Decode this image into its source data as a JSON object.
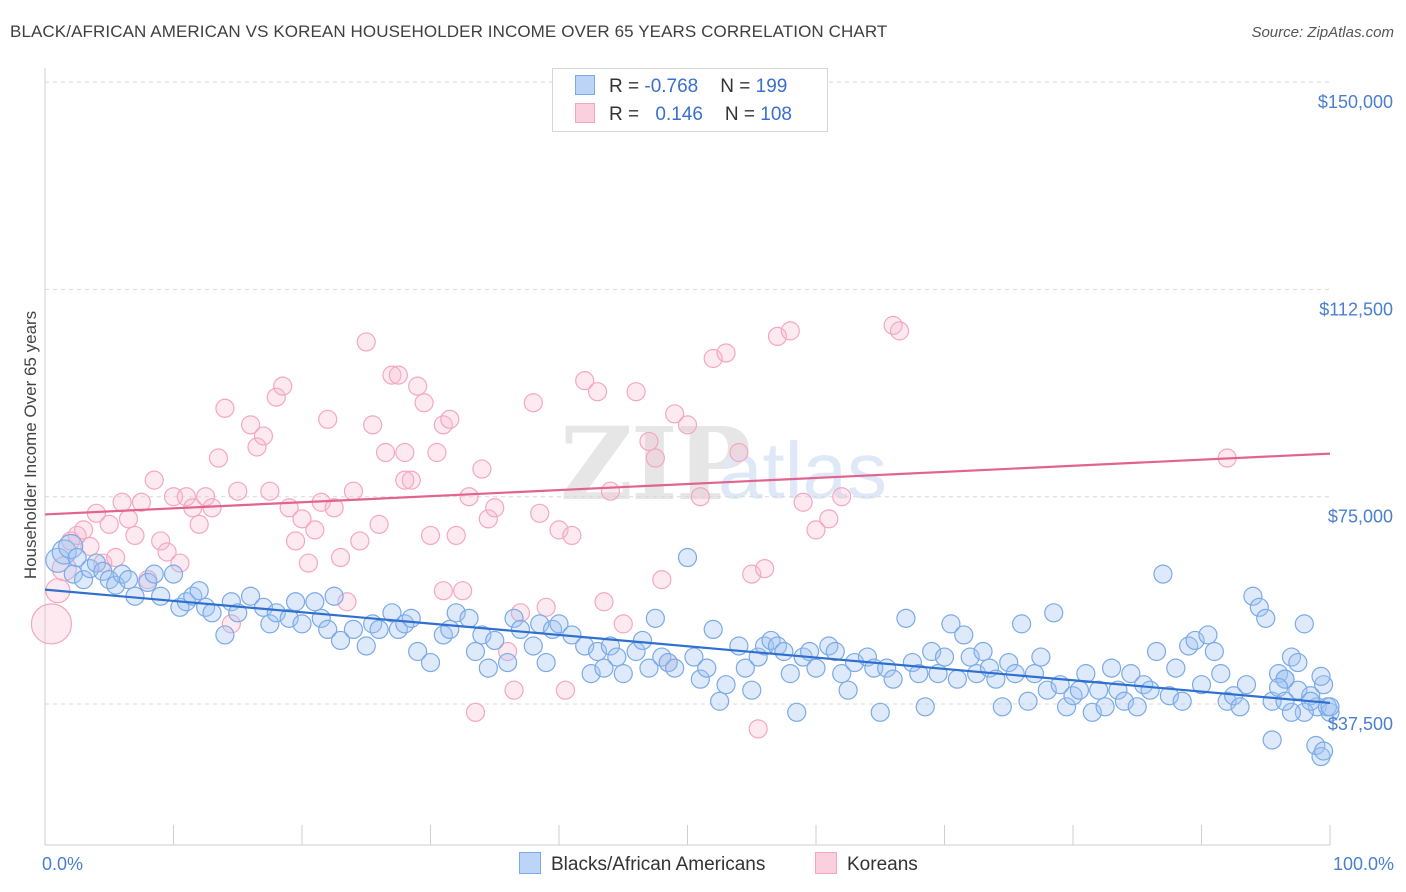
{
  "title": "BLACK/AFRICAN AMERICAN VS KOREAN HOUSEHOLDER INCOME OVER 65 YEARS CORRELATION CHART",
  "source": "Source: ZipAtlas.com",
  "watermark": {
    "zip": "ZIP",
    "atlas": "atlas"
  },
  "legend": {
    "rows": [
      {
        "r_label": "R = ",
        "r_value": "-0.768",
        "n_label": "N = ",
        "n_value": "199"
      },
      {
        "r_label": "R = ",
        "r_value": "0.146",
        "n_label": "N = ",
        "n_value": "108"
      }
    ]
  },
  "bottom_legend": [
    "Blacks/African Americans",
    "Koreans"
  ],
  "chart_data": {
    "type": "scatter",
    "title": "BLACK/AFRICAN AMERICAN VS KOREAN HOUSEHOLDER INCOME OVER 65 YEARS CORRELATION CHART",
    "xlabel": "",
    "ylabel": "Householder Income Over 65 years",
    "x_range": [
      0,
      100
    ],
    "y_range": [
      12000,
      154000
    ],
    "x_tick_labels": [
      "0.0%",
      "100.0%"
    ],
    "y_ticks": [
      {
        "value": 150000,
        "label": "$150,000"
      },
      {
        "value": 112500,
        "label": "$112,500"
      },
      {
        "value": 75000,
        "label": "$75,000"
      },
      {
        "value": 37500,
        "label": "$37,500"
      }
    ],
    "grid": "horizontal dashed",
    "legend_position": "top-center",
    "series": [
      {
        "name": "Blacks/African Americans",
        "color": "#7aaae8",
        "line_color": "#2f6fd0",
        "r": -0.768,
        "n": 199,
        "trend": [
          [
            0,
            58200
          ],
          [
            100,
            37700
          ]
        ],
        "points": [
          [
            1.0,
            63.5
          ],
          [
            1.5,
            65
          ],
          [
            2,
            66
          ],
          [
            2.2,
            61
          ],
          [
            2.5,
            64
          ],
          [
            3,
            60
          ],
          [
            3.5,
            62
          ],
          [
            4,
            63
          ],
          [
            4.5,
            61.5
          ],
          [
            5,
            60
          ],
          [
            5.5,
            59
          ],
          [
            6,
            61
          ],
          [
            6.5,
            60
          ],
          [
            7,
            57
          ],
          [
            8,
            59.5
          ],
          [
            8.5,
            61
          ],
          [
            9,
            57
          ],
          [
            10,
            61
          ],
          [
            10.5,
            55
          ],
          [
            11,
            56
          ],
          [
            11.5,
            57
          ],
          [
            12,
            58
          ],
          [
            12.5,
            55
          ],
          [
            13,
            54
          ],
          [
            14,
            50
          ],
          [
            14.5,
            56
          ],
          [
            15,
            54
          ],
          [
            16,
            57
          ],
          [
            17,
            55
          ],
          [
            17.5,
            52
          ],
          [
            18,
            54
          ],
          [
            19,
            53
          ],
          [
            19.5,
            56
          ],
          [
            20,
            52
          ],
          [
            21,
            56
          ],
          [
            21.5,
            53
          ],
          [
            22,
            51
          ],
          [
            22.5,
            57
          ],
          [
            23,
            49
          ],
          [
            24,
            51
          ],
          [
            25,
            48
          ],
          [
            25.5,
            52
          ],
          [
            26,
            51
          ],
          [
            27,
            54
          ],
          [
            27.5,
            51
          ],
          [
            28,
            52
          ],
          [
            28.5,
            53
          ],
          [
            29,
            47
          ],
          [
            30,
            45
          ],
          [
            31,
            50
          ],
          [
            31.5,
            51
          ],
          [
            32,
            54
          ],
          [
            33,
            53
          ],
          [
            33.5,
            47
          ],
          [
            34,
            50
          ],
          [
            34.5,
            44
          ],
          [
            35,
            49
          ],
          [
            36,
            45
          ],
          [
            36.5,
            53
          ],
          [
            37,
            51
          ],
          [
            38,
            48
          ],
          [
            38.5,
            52
          ],
          [
            39,
            45
          ],
          [
            39.5,
            51
          ],
          [
            40,
            52
          ],
          [
            41,
            50
          ],
          [
            42,
            48
          ],
          [
            42.5,
            43
          ],
          [
            43,
            47
          ],
          [
            43.5,
            44
          ],
          [
            44,
            48
          ],
          [
            44.5,
            46
          ],
          [
            45,
            43
          ],
          [
            46,
            47
          ],
          [
            46.5,
            49
          ],
          [
            47,
            44
          ],
          [
            47.5,
            53
          ],
          [
            48,
            46
          ],
          [
            48.5,
            45
          ],
          [
            49,
            44
          ],
          [
            50,
            64
          ],
          [
            50.5,
            46
          ],
          [
            51,
            42
          ],
          [
            51.5,
            44
          ],
          [
            52,
            51
          ],
          [
            52.5,
            38
          ],
          [
            53,
            41
          ],
          [
            54,
            48
          ],
          [
            54.5,
            44
          ],
          [
            55,
            40
          ],
          [
            55.5,
            46
          ],
          [
            56,
            48
          ],
          [
            56.5,
            49
          ],
          [
            57,
            48
          ],
          [
            57.5,
            47
          ],
          [
            58,
            43
          ],
          [
            58.5,
            36
          ],
          [
            59,
            46
          ],
          [
            59.5,
            47
          ],
          [
            60,
            44
          ],
          [
            61,
            48
          ],
          [
            61.5,
            47
          ],
          [
            62,
            43
          ],
          [
            62.5,
            40
          ],
          [
            63,
            45
          ],
          [
            64,
            46
          ],
          [
            64.5,
            44
          ],
          [
            65,
            36
          ],
          [
            65.5,
            44
          ],
          [
            66,
            42
          ],
          [
            67,
            53
          ],
          [
            67.5,
            45
          ],
          [
            68,
            43
          ],
          [
            68.5,
            37
          ],
          [
            69,
            47
          ],
          [
            69.5,
            43
          ],
          [
            70,
            46
          ],
          [
            70.5,
            52
          ],
          [
            71,
            42
          ],
          [
            71.5,
            50
          ],
          [
            72,
            46
          ],
          [
            72.5,
            43
          ],
          [
            73,
            47
          ],
          [
            73.5,
            44
          ],
          [
            74,
            42
          ],
          [
            74.5,
            37
          ],
          [
            75,
            45
          ],
          [
            75.5,
            43
          ],
          [
            76,
            52
          ],
          [
            76.5,
            38
          ],
          [
            77,
            43
          ],
          [
            77.5,
            46
          ],
          [
            78,
            40
          ],
          [
            78.5,
            54
          ],
          [
            79,
            41
          ],
          [
            79.5,
            37
          ],
          [
            80,
            39
          ],
          [
            80.5,
            40
          ],
          [
            81,
            43
          ],
          [
            81.5,
            36
          ],
          [
            82,
            40
          ],
          [
            82.5,
            37
          ],
          [
            83,
            44
          ],
          [
            83.5,
            40
          ],
          [
            84,
            38
          ],
          [
            84.5,
            43
          ],
          [
            85,
            37
          ],
          [
            85.5,
            41
          ],
          [
            86,
            40
          ],
          [
            86.5,
            47
          ],
          [
            87,
            61
          ],
          [
            87.5,
            39
          ],
          [
            88,
            44
          ],
          [
            88.5,
            38
          ],
          [
            89,
            48
          ],
          [
            89.5,
            49
          ],
          [
            90,
            41
          ],
          [
            90.5,
            50
          ],
          [
            91,
            47
          ],
          [
            91.5,
            43
          ],
          [
            92,
            38
          ],
          [
            92.5,
            39
          ],
          [
            93,
            37
          ],
          [
            93.5,
            41
          ],
          [
            94,
            57
          ],
          [
            94.5,
            55
          ],
          [
            95,
            53
          ],
          [
            95.5,
            38
          ],
          [
            96,
            43
          ],
          [
            96.5,
            42
          ],
          [
            97,
            46
          ],
          [
            97.5,
            40
          ],
          [
            98,
            52
          ],
          [
            98.5,
            39
          ],
          [
            99,
            37
          ],
          [
            99.5,
            41
          ],
          [
            100,
            36
          ],
          [
            96.5,
            42
          ],
          [
            97.5,
            45
          ],
          [
            98,
            36
          ],
          [
            98.5,
            38
          ],
          [
            99.3,
            42.5
          ],
          [
            99.8,
            37
          ],
          [
            97,
            36
          ],
          [
            96,
            40.5
          ],
          [
            98.9,
            30
          ],
          [
            99.3,
            28
          ],
          [
            99.5,
            29
          ],
          [
            100,
            37
          ],
          [
            95.5,
            31
          ],
          [
            96.5,
            38
          ]
        ]
      },
      {
        "name": "Koreans",
        "color": "#f4a7c0",
        "line_color": "#e2638f",
        "r": 0.146,
        "n": 108,
        "trend": [
          [
            0,
            71800
          ],
          [
            100,
            82800
          ]
        ],
        "points": [
          [
            0.5,
            52
          ],
          [
            1,
            58
          ],
          [
            1.5,
            62
          ],
          [
            2,
            67
          ],
          [
            2.5,
            68
          ],
          [
            3,
            69
          ],
          [
            3.5,
            66
          ],
          [
            4,
            72
          ],
          [
            4.5,
            63
          ],
          [
            5,
            70
          ],
          [
            5.5,
            64
          ],
          [
            6,
            74
          ],
          [
            6.5,
            71
          ],
          [
            7,
            68
          ],
          [
            7.5,
            74
          ],
          [
            8,
            60
          ],
          [
            8.5,
            78
          ],
          [
            9,
            67
          ],
          [
            9.5,
            65
          ],
          [
            10,
            75
          ],
          [
            10.5,
            63
          ],
          [
            11,
            75
          ],
          [
            11.5,
            73
          ],
          [
            12,
            70
          ],
          [
            12.5,
            75
          ],
          [
            13,
            73
          ],
          [
            13.5,
            82
          ],
          [
            14,
            91
          ],
          [
            14.5,
            52
          ],
          [
            15,
            76
          ],
          [
            16,
            88
          ],
          [
            16.5,
            84
          ],
          [
            17,
            86
          ],
          [
            17.5,
            76
          ],
          [
            18,
            93
          ],
          [
            18.5,
            95
          ],
          [
            19,
            73
          ],
          [
            19.5,
            67
          ],
          [
            20,
            71
          ],
          [
            20.5,
            63
          ],
          [
            21,
            69
          ],
          [
            21.5,
            74
          ],
          [
            22,
            89
          ],
          [
            22.5,
            73
          ],
          [
            23,
            64
          ],
          [
            23.5,
            56
          ],
          [
            24,
            76
          ],
          [
            24.5,
            67
          ],
          [
            25,
            103
          ],
          [
            25.5,
            88
          ],
          [
            26,
            70
          ],
          [
            26.5,
            83
          ],
          [
            27,
            97
          ],
          [
            27.5,
            97
          ],
          [
            28,
            83
          ],
          [
            28.5,
            78
          ],
          [
            29,
            95
          ],
          [
            29.5,
            92
          ],
          [
            30,
            68
          ],
          [
            30.5,
            83
          ],
          [
            31,
            88
          ],
          [
            31.5,
            89
          ],
          [
            32,
            68
          ],
          [
            32.5,
            58
          ],
          [
            33,
            75
          ],
          [
            33.5,
            36
          ],
          [
            34,
            80
          ],
          [
            34.5,
            71
          ],
          [
            35,
            73
          ],
          [
            36,
            47
          ],
          [
            36.5,
            40
          ],
          [
            37,
            54
          ],
          [
            38,
            92
          ],
          [
            39,
            55
          ],
          [
            40,
            69
          ],
          [
            41,
            68
          ],
          [
            42,
            96
          ],
          [
            43,
            94
          ],
          [
            43.5,
            56
          ],
          [
            44,
            76
          ],
          [
            45,
            52
          ],
          [
            46,
            94
          ],
          [
            47,
            85
          ],
          [
            47.5,
            82
          ],
          [
            48,
            60
          ],
          [
            48.5,
            45
          ],
          [
            49,
            90
          ],
          [
            50,
            88
          ],
          [
            51,
            75
          ],
          [
            52,
            100
          ],
          [
            53,
            101
          ],
          [
            54,
            83
          ],
          [
            55,
            61
          ],
          [
            56,
            62
          ],
          [
            57,
            104
          ],
          [
            58,
            105
          ],
          [
            59,
            74
          ],
          [
            60,
            69
          ],
          [
            61,
            71
          ],
          [
            62,
            75
          ],
          [
            92,
            82
          ],
          [
            66,
            106
          ],
          [
            66.5,
            105
          ],
          [
            38.5,
            72
          ],
          [
            31,
            58
          ],
          [
            28,
            78
          ],
          [
            40.5,
            40
          ],
          [
            55.5,
            33
          ]
        ]
      }
    ]
  }
}
